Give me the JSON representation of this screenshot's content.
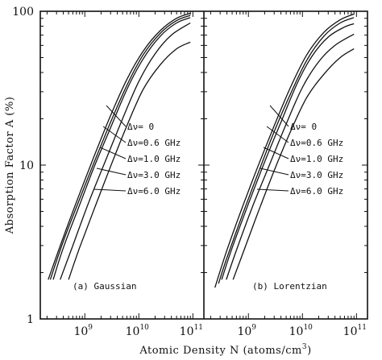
{
  "chart_data": {
    "type": "line",
    "ylabel": "Absorption Factor A (%)",
    "xlabel": "Atomic Density N (atoms/cm3)",
    "xlabel_parts": {
      "main": "Atomic Density N (atoms/cm",
      "sup": "3",
      "close": ")"
    },
    "x_scale": "log",
    "y_scale": "log",
    "shared_y_ticks": [
      "100",
      "10",
      "1"
    ],
    "y_tick_values": [
      100,
      10,
      1
    ],
    "ylim": [
      1,
      100
    ],
    "panels": [
      {
        "label": "(a) Gaussian",
        "xlim": [
          150000000.0,
          160000000000.0
        ],
        "x_ticks": [
          {
            "value": 1000000000.0,
            "base": "10",
            "exp": "9"
          },
          {
            "value": 10000000000.0,
            "base": "10",
            "exp": "10"
          },
          {
            "value": 100000000000.0,
            "base": "10",
            "exp": "11"
          }
        ],
        "series": [
          {
            "name": "Δν= 0",
            "x": [
              210000000.0,
              400000000.0,
              800000000.0,
              1500000000.0,
              3000000000.0,
              6000000000.0,
              12000000000.0,
              25000000000.0,
              50000000000.0,
              90000000000.0
            ],
            "y": [
              1.8,
              3.4,
              6.5,
              11.5,
              21,
              36,
              55,
              75,
              90,
              97
            ]
          },
          {
            "name": "Δν=0.6 GHz",
            "x": [
              230000000.0,
              400000000.0,
              800000000.0,
              1500000000.0,
              3000000000.0,
              6000000000.0,
              12000000000.0,
              25000000000.0,
              50000000000.0,
              90000000000.0
            ],
            "y": [
              1.8,
              3.2,
              6.0,
              10.5,
              19,
              33,
              52,
              72,
              87,
              94
            ]
          },
          {
            "name": "Δν=1.0 GHz",
            "x": [
              260000000.0,
              400000000.0,
              800000000.0,
              1500000000.0,
              3000000000.0,
              6000000000.0,
              12000000000.0,
              25000000000.0,
              50000000000.0,
              90000000000.0
            ],
            "y": [
              1.8,
              2.9,
              5.5,
              9.8,
              17.5,
              31,
              49,
              69,
              84,
              91
            ]
          },
          {
            "name": "Δν=3.0 GHz",
            "x": [
              350000000.0,
              600000000.0,
              1200000000.0,
              2500000000.0,
              5000000000.0,
              10000000000.0,
              20000000000.0,
              40000000000.0,
              90000000000.0
            ],
            "y": [
              1.8,
              3.0,
              5.8,
              11,
              20,
              35,
              53,
              70,
              84
            ]
          },
          {
            "name": "Δν=6.0 GHz",
            "x": [
              500000000.0,
              800000000.0,
              1500000000.0,
              3000000000.0,
              6000000000.0,
              12000000000.0,
              25000000000.0,
              50000000000.0,
              90000000000.0
            ],
            "y": [
              1.8,
              2.9,
              5.2,
              9.8,
              18,
              31,
              45,
              57,
              63
            ]
          }
        ]
      },
      {
        "label": "(b) Lorentzian",
        "xlim": [
          150000000.0,
          160000000000.0
        ],
        "x_ticks": [
          {
            "value": 1000000000.0,
            "base": "10",
            "exp": "9"
          },
          {
            "value": 10000000000.0,
            "base": "10",
            "exp": "10"
          },
          {
            "value": 100000000000.0,
            "base": "10",
            "exp": "11"
          }
        ],
        "series": [
          {
            "name": "Δν= 0",
            "x": [
              240000000.0,
              400000000.0,
              800000000.0,
              1500000000.0,
              3000000000.0,
              6000000000.0,
              12000000000.0,
              25000000000.0,
              50000000000.0,
              90000000000.0
            ],
            "y": [
              1.6,
              2.8,
              5.5,
              9.8,
              18,
              32,
              52,
              73,
              88,
              96
            ]
          },
          {
            "name": "Δν=0.6 GHz",
            "x": [
              280000000.0,
              400000000.0,
              800000000.0,
              1500000000.0,
              3000000000.0,
              6000000000.0,
              12000000000.0,
              25000000000.0,
              50000000000.0,
              90000000000.0
            ],
            "y": [
              1.7,
              2.5,
              4.9,
              8.8,
              16.5,
              29,
              48,
              69,
              84,
              91
            ]
          },
          {
            "name": "Δν=1.0 GHz",
            "x": [
              320000000.0,
              500000000.0,
              1000000000.0,
              2000000000.0,
              4000000000.0,
              8000000000.0,
              15000000000.0,
              30000000000.0,
              60000000000.0,
              90000000000.0
            ],
            "y": [
              1.8,
              2.9,
              5.6,
              10.5,
              19,
              34,
              51,
              68,
              79,
              83
            ]
          },
          {
            "name": "Δν=3.0 GHz",
            "x": [
              390000000.0,
              600000000.0,
              1200000000.0,
              2500000000.0,
              5000000000.0,
              10000000000.0,
              20000000000.0,
              40000000000.0,
              90000000000.0
            ],
            "y": [
              1.8,
              2.8,
              5.4,
              10.2,
              18.5,
              32,
              47,
              60,
              71
            ]
          },
          {
            "name": "Δν=6.0 GHz",
            "x": [
              520000000.0,
              800000000.0,
              1500000000.0,
              3000000000.0,
              6000000000.0,
              12000000000.0,
              25000000000.0,
              50000000000.0,
              90000000000.0
            ],
            "y": [
              1.8,
              2.7,
              4.9,
              9.2,
              16.5,
              27.5,
              39,
              50,
              57
            ]
          }
        ]
      }
    ]
  }
}
